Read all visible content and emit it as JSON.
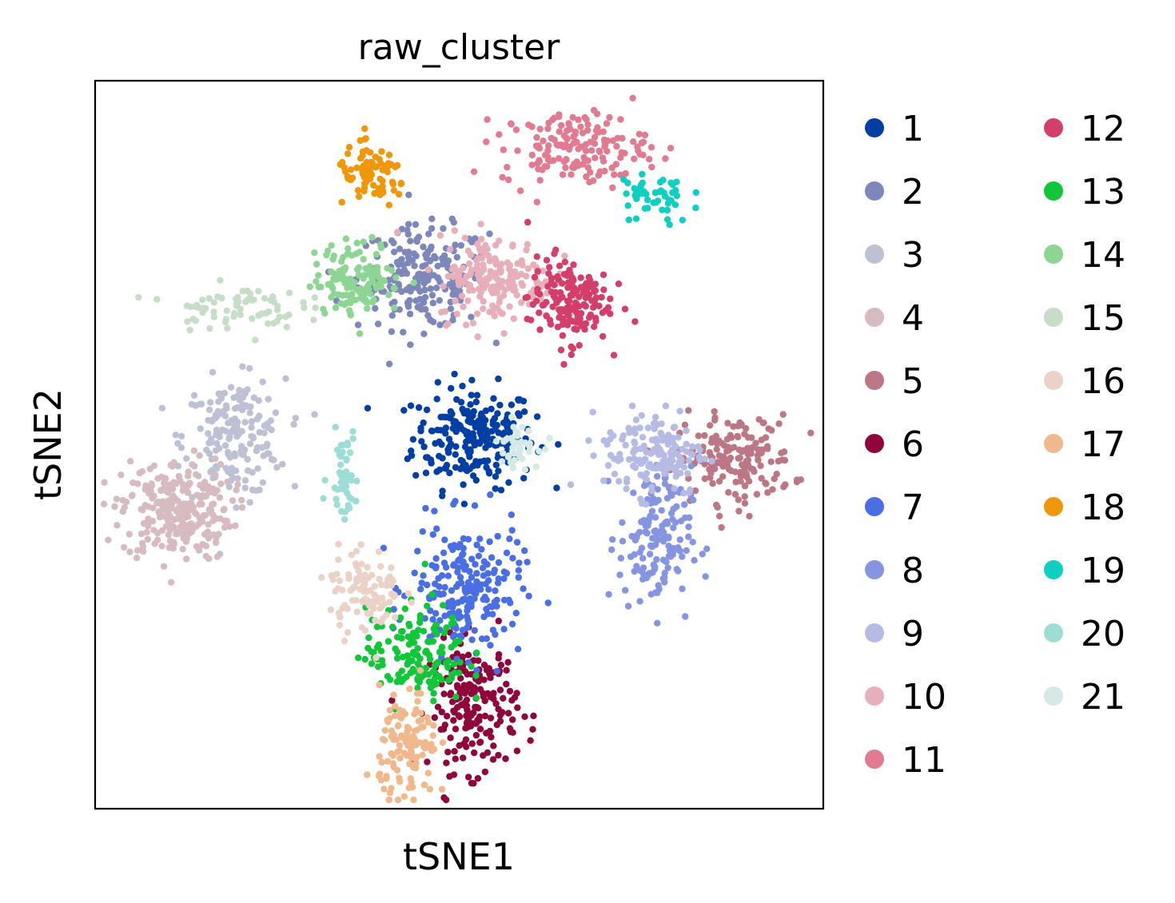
{
  "chart_data": {
    "type": "scatter",
    "title": "raw_cluster",
    "xlabel": "tSNE1",
    "ylabel": "tSNE2",
    "xlim": [
      0,
      100
    ],
    "ylim": [
      0,
      100
    ],
    "grid": false,
    "legend_position": "right",
    "legend_columns": 2,
    "legend": [
      {
        "label": "1",
        "color": "#023fa5"
      },
      {
        "label": "2",
        "color": "#7d87b9"
      },
      {
        "label": "3",
        "color": "#bec1d4"
      },
      {
        "label": "4",
        "color": "#d6bcc0"
      },
      {
        "label": "5",
        "color": "#bb7784"
      },
      {
        "label": "6",
        "color": "#8e063b"
      },
      {
        "label": "7",
        "color": "#4a6fe3"
      },
      {
        "label": "8",
        "color": "#8595e1"
      },
      {
        "label": "9",
        "color": "#b5bbe3"
      },
      {
        "label": "10",
        "color": "#e6afb9"
      },
      {
        "label": "11",
        "color": "#e07b91"
      },
      {
        "label": "12",
        "color": "#d33f6a"
      },
      {
        "label": "13",
        "color": "#11c638"
      },
      {
        "label": "14",
        "color": "#8dd593"
      },
      {
        "label": "15",
        "color": "#c6dec7"
      },
      {
        "label": "16",
        "color": "#ead3c6"
      },
      {
        "label": "17",
        "color": "#f0b98d"
      },
      {
        "label": "18",
        "color": "#ef9708"
      },
      {
        "label": "19",
        "color": "#0fcfc0"
      },
      {
        "label": "20",
        "color": "#9cded6"
      },
      {
        "label": "21",
        "color": "#d5eae7"
      }
    ],
    "clusters": [
      {
        "label": "1",
        "cx": 52,
        "cy": 51,
        "sx": 4.2,
        "sy": 3.5,
        "n": 230
      },
      {
        "label": "2",
        "cx": 45,
        "cy": 73,
        "sx": 4.5,
        "sy": 3.5,
        "n": 200
      },
      {
        "label": "3",
        "cx": 19,
        "cy": 51,
        "sx": 3.5,
        "sy": 4.0,
        "n": 180
      },
      {
        "label": "4",
        "cx": 11,
        "cy": 41,
        "sx": 3.8,
        "sy": 3.5,
        "n": 260
      },
      {
        "label": "5",
        "cx": 88,
        "cy": 48,
        "sx": 4.0,
        "sy": 3.0,
        "n": 170
      },
      {
        "label": "6",
        "cx": 52,
        "cy": 14,
        "sx": 3.0,
        "sy": 4.5,
        "n": 200
      },
      {
        "label": "7",
        "cx": 51,
        "cy": 30,
        "sx": 3.8,
        "sy": 4.5,
        "n": 210
      },
      {
        "label": "8",
        "cx": 77,
        "cy": 37,
        "sx": 2.5,
        "sy": 5.0,
        "n": 150
      },
      {
        "label": "9",
        "cx": 77,
        "cy": 49,
        "sx": 3.5,
        "sy": 3.0,
        "n": 150
      },
      {
        "label": "10",
        "cx": 55,
        "cy": 73,
        "sx": 4.0,
        "sy": 3.0,
        "n": 180
      },
      {
        "label": "11",
        "cx": 66,
        "cy": 91,
        "sx": 5.0,
        "sy": 2.5,
        "n": 160
      },
      {
        "label": "12",
        "cx": 65,
        "cy": 70,
        "sx": 2.8,
        "sy": 3.0,
        "n": 160
      },
      {
        "label": "13",
        "cx": 44,
        "cy": 21,
        "sx": 3.5,
        "sy": 3.5,
        "n": 150
      },
      {
        "label": "14",
        "cx": 36,
        "cy": 73,
        "sx": 3.0,
        "sy": 2.5,
        "n": 130
      },
      {
        "label": "15",
        "cx": 19,
        "cy": 69,
        "sx": 4.5,
        "sy": 1.5,
        "n": 70
      },
      {
        "label": "16",
        "cx": 37,
        "cy": 30,
        "sx": 2.5,
        "sy": 3.0,
        "n": 100
      },
      {
        "label": "17",
        "cx": 43,
        "cy": 8,
        "sx": 2.0,
        "sy": 4.0,
        "n": 120
      },
      {
        "label": "18",
        "cx": 38,
        "cy": 87,
        "sx": 2.5,
        "sy": 2.0,
        "n": 80
      },
      {
        "label": "19",
        "cx": 77,
        "cy": 84,
        "sx": 2.5,
        "sy": 2.0,
        "n": 50
      },
      {
        "label": "20",
        "cx": 34,
        "cy": 46,
        "sx": 1.0,
        "sy": 3.0,
        "n": 50
      },
      {
        "label": "21",
        "cx": 58,
        "cy": 50,
        "sx": 1.5,
        "sy": 1.5,
        "n": 40
      }
    ]
  }
}
